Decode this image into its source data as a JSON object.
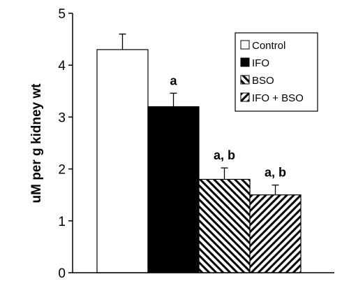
{
  "chart_data": {
    "type": "bar",
    "title": "",
    "xlabel": "",
    "ylabel": "uM per g kidney wt",
    "ylim": [
      0,
      5
    ],
    "yticks": [
      0,
      1,
      2,
      3,
      4,
      5
    ],
    "grid": false,
    "legend_placement": "top-right",
    "bars": [
      {
        "name": "Control",
        "value": 4.3,
        "error": 0.3,
        "annotation": "",
        "pattern": "open"
      },
      {
        "name": "IFO",
        "value": 3.2,
        "error": 0.26,
        "annotation": "a",
        "pattern": "solid"
      },
      {
        "name": "BSO",
        "value": 1.8,
        "error": 0.22,
        "annotation": "a, b",
        "pattern": "hatch-back"
      },
      {
        "name": "IFO + BSO",
        "value": 1.5,
        "error": 0.19,
        "annotation": "a, b",
        "pattern": "hatch-forward"
      }
    ],
    "legend": [
      "Control",
      "IFO",
      "BSO",
      "IFO + BSO"
    ],
    "colors": {
      "axis": "#000000",
      "solid_fill": "#000000",
      "open_fill": "#ffffff"
    }
  }
}
